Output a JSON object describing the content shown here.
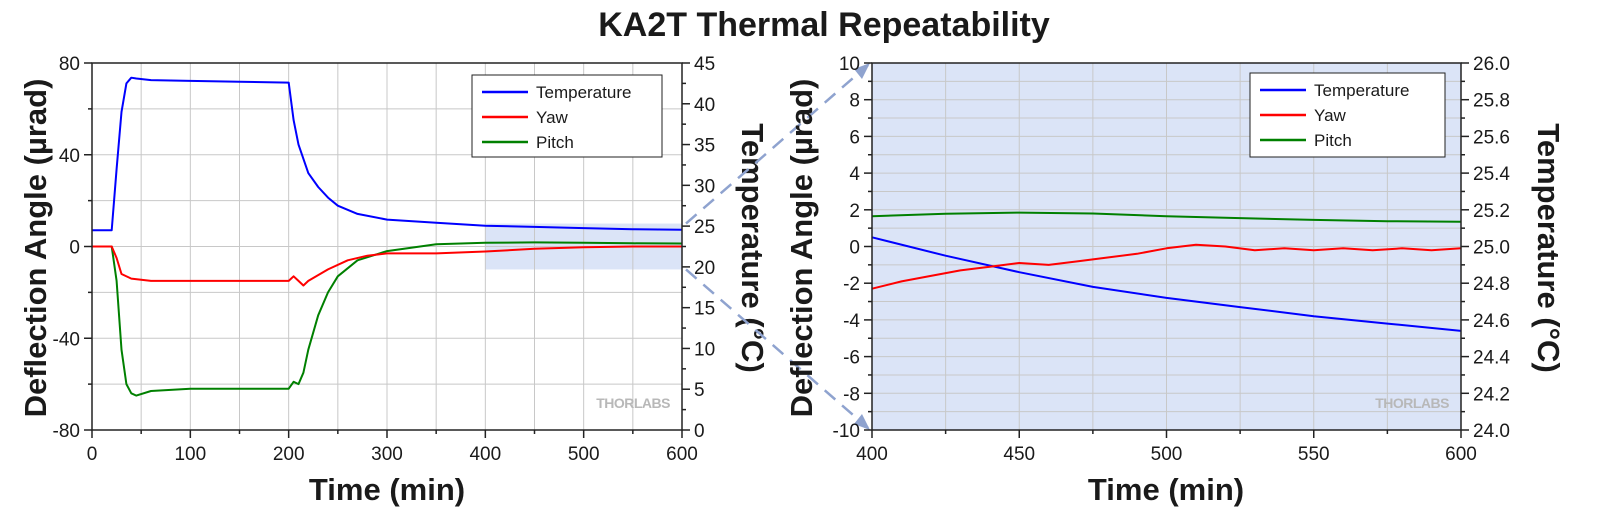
{
  "figure_title": "KA2T Thermal Repeatability",
  "watermark": "THORLABS",
  "colors": {
    "temperature": "#0000ff",
    "yaw": "#ff0000",
    "pitch": "#008000",
    "highlight": "#dbe4f7",
    "grid": "#c8c8c8",
    "connector": "#8fa3cf"
  },
  "chart_data": [
    {
      "type": "line",
      "xlabel": "Time (min)",
      "ylabel": "Deflection Angle (µrad)",
      "y2label": "Temperature (°C)",
      "xlim": [
        0,
        600
      ],
      "ylim": [
        -80,
        80
      ],
      "y2lim": [
        0,
        45
      ],
      "xticks": [
        0,
        100,
        200,
        300,
        400,
        500,
        600
      ],
      "yticks": [
        -80,
        -40,
        0,
        40,
        80
      ],
      "y2ticks": [
        0,
        5,
        10,
        15,
        20,
        25,
        30,
        35,
        40,
        45
      ],
      "grid": true,
      "legend": "top-right",
      "highlight_region": {
        "x": [
          400,
          600
        ],
        "y": [
          -10,
          10
        ]
      },
      "series": [
        {
          "name": "Temperature",
          "axis": "right",
          "x": [
            0,
            20,
            25,
            30,
            35,
            40,
            45,
            60,
            100,
            150,
            200,
            205,
            210,
            220,
            230,
            240,
            250,
            270,
            300,
            350,
            400,
            450,
            500,
            550,
            600
          ],
          "y": [
            24.5,
            24.5,
            32,
            39,
            42.5,
            43.2,
            43.1,
            42.9,
            42.8,
            42.7,
            42.6,
            38,
            35,
            31.5,
            29.8,
            28.5,
            27.5,
            26.5,
            25.8,
            25.4,
            25.05,
            24.9,
            24.75,
            24.62,
            24.55
          ]
        },
        {
          "name": "Yaw",
          "axis": "left",
          "x": [
            0,
            20,
            25,
            30,
            40,
            60,
            80,
            100,
            150,
            200,
            205,
            210,
            215,
            220,
            240,
            260,
            280,
            300,
            350,
            400,
            450,
            500,
            550,
            600
          ],
          "y": [
            0,
            0,
            -5,
            -12,
            -14,
            -15,
            -15,
            -15,
            -15,
            -15,
            -13,
            -15,
            -17,
            -15,
            -10,
            -6,
            -4,
            -3,
            -3,
            -2.2,
            -1,
            -0.3,
            0,
            0
          ]
        },
        {
          "name": "Pitch",
          "axis": "left",
          "x": [
            0,
            20,
            25,
            30,
            35,
            40,
            45,
            60,
            100,
            150,
            200,
            205,
            210,
            215,
            220,
            230,
            240,
            250,
            270,
            300,
            350,
            400,
            450,
            500,
            550,
            600
          ],
          "y": [
            0,
            0,
            -15,
            -45,
            -60,
            -64,
            -65,
            -63,
            -62,
            -62,
            -62,
            -59,
            -60,
            -55,
            -45,
            -30,
            -20,
            -13,
            -6,
            -2,
            1,
            1.6,
            1.8,
            1.6,
            1.4,
            1.3
          ]
        }
      ]
    },
    {
      "type": "line",
      "xlabel": "Time (min)",
      "ylabel": "Deflection Angle (µrad)",
      "y2label": "Temperature (°C)",
      "xlim": [
        400,
        600
      ],
      "ylim": [
        -10,
        10
      ],
      "y2lim": [
        24.0,
        26.0
      ],
      "xticks": [
        400,
        450,
        500,
        550,
        600
      ],
      "yticks": [
        -10,
        -8,
        -6,
        -4,
        -2,
        0,
        2,
        4,
        6,
        8,
        10
      ],
      "y2ticks": [
        24.0,
        24.2,
        24.4,
        24.6,
        24.8,
        25.0,
        25.2,
        25.4,
        25.6,
        25.8,
        26.0
      ],
      "grid": true,
      "legend": "top-right",
      "background": "highlight",
      "series": [
        {
          "name": "Temperature",
          "axis": "right",
          "x": [
            400,
            425,
            450,
            475,
            500,
            525,
            550,
            575,
            600
          ],
          "y": [
            25.05,
            24.95,
            24.86,
            24.78,
            24.72,
            24.67,
            24.62,
            24.58,
            24.54
          ]
        },
        {
          "name": "Yaw",
          "axis": "left",
          "x": [
            400,
            410,
            420,
            430,
            440,
            450,
            460,
            470,
            480,
            490,
            500,
            510,
            520,
            530,
            540,
            550,
            560,
            570,
            580,
            590,
            600
          ],
          "y": [
            -2.3,
            -1.9,
            -1.6,
            -1.3,
            -1.1,
            -0.9,
            -1.0,
            -0.8,
            -0.6,
            -0.4,
            -0.1,
            0.1,
            0.0,
            -0.2,
            -0.1,
            -0.2,
            -0.1,
            -0.2,
            -0.1,
            -0.2,
            -0.1
          ]
        },
        {
          "name": "Pitch",
          "axis": "left",
          "x": [
            400,
            425,
            450,
            475,
            500,
            525,
            550,
            575,
            600
          ],
          "y": [
            1.65,
            1.78,
            1.85,
            1.8,
            1.65,
            1.55,
            1.45,
            1.38,
            1.35
          ]
        }
      ]
    }
  ]
}
